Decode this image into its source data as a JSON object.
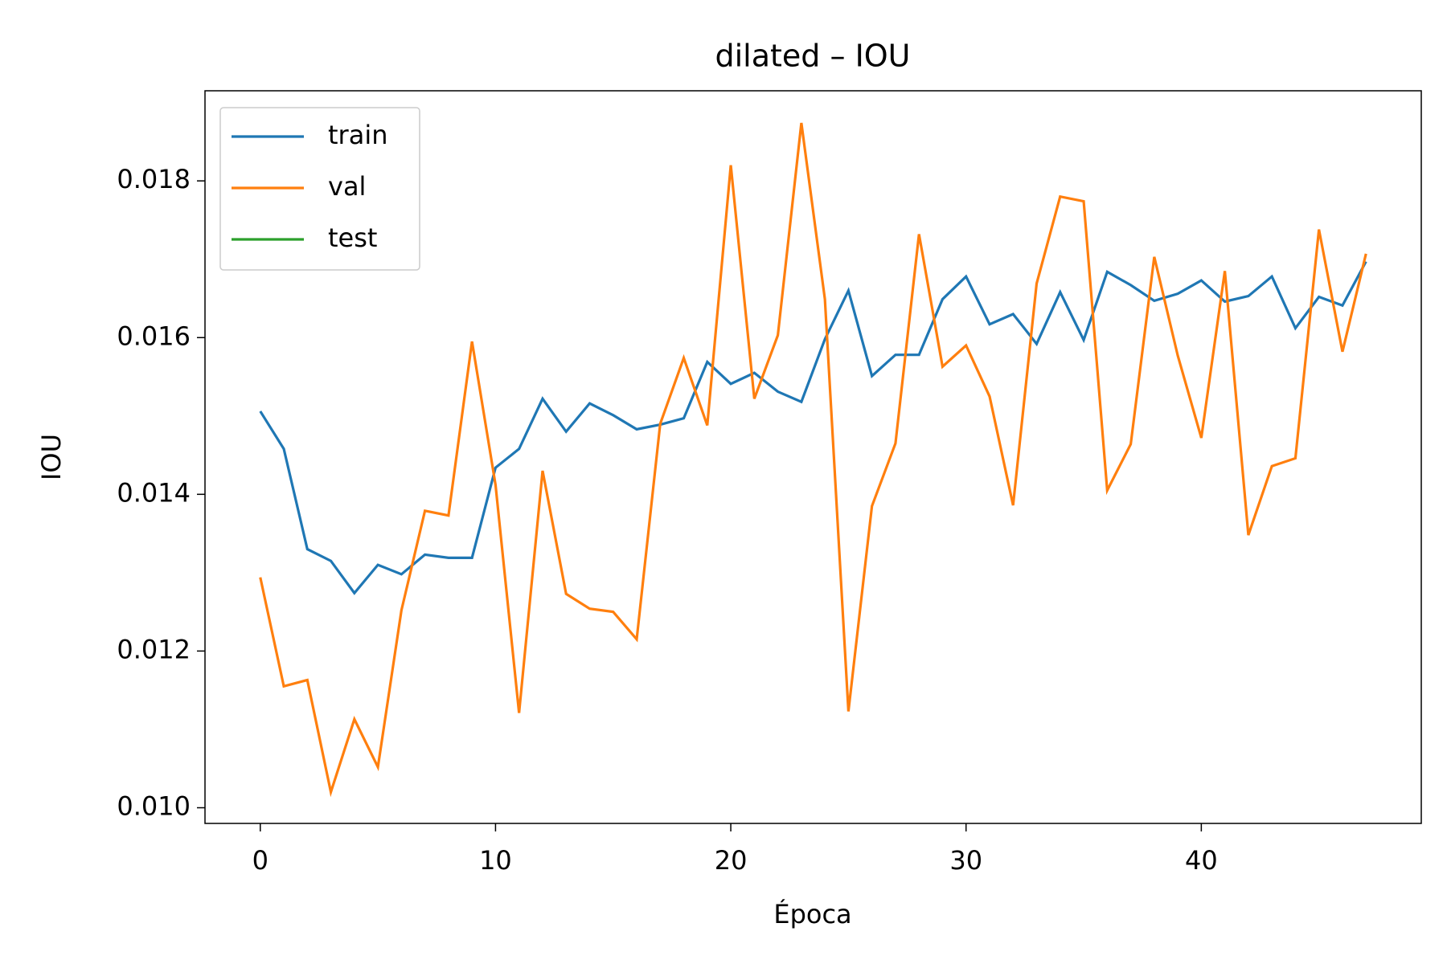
{
  "chart_data": {
    "type": "line",
    "title": "dilated – IOU",
    "xlabel": "Época",
    "ylabel": "IOU",
    "x": [
      0,
      1,
      2,
      3,
      4,
      5,
      6,
      7,
      8,
      9,
      10,
      11,
      12,
      13,
      14,
      15,
      16,
      17,
      18,
      19,
      20,
      21,
      22,
      23,
      24,
      25,
      26,
      27,
      28,
      29,
      30,
      31,
      32,
      33,
      34,
      35,
      36,
      37,
      38,
      39,
      40,
      41,
      42,
      43,
      44,
      45,
      46,
      47
    ],
    "series": [
      {
        "name": "train",
        "color": "#1f77b4",
        "values": [
          0.01506,
          0.01458,
          0.0133,
          0.01315,
          0.01274,
          0.0131,
          0.01298,
          0.01323,
          0.01319,
          0.01319,
          0.01434,
          0.01458,
          0.01522,
          0.0148,
          0.01516,
          0.01501,
          0.01483,
          0.01489,
          0.01497,
          0.01569,
          0.01541,
          0.01555,
          0.01531,
          0.01518,
          0.01598,
          0.0166,
          0.01551,
          0.01578,
          0.01578,
          0.01649,
          0.01678,
          0.01617,
          0.0163,
          0.01592,
          0.01658,
          0.01597,
          0.01684,
          0.01667,
          0.01647,
          0.01656,
          0.01673,
          0.01646,
          0.01653,
          0.01678,
          0.01612,
          0.01652,
          0.01641,
          0.01697
        ]
      },
      {
        "name": "val",
        "color": "#ff7f0e",
        "values": [
          0.01294,
          0.01155,
          0.01163,
          0.0102,
          0.01113,
          0.01052,
          0.01252,
          0.01379,
          0.01373,
          0.01595,
          0.01412,
          0.01121,
          0.0143,
          0.01273,
          0.01254,
          0.0125,
          0.01215,
          0.0149,
          0.01574,
          0.01488,
          0.0182,
          0.01522,
          0.01603,
          0.01874,
          0.01649,
          0.01123,
          0.01385,
          0.01465,
          0.01732,
          0.01563,
          0.0159,
          0.01525,
          0.01386,
          0.01669,
          0.0178,
          0.01774,
          0.01405,
          0.01464,
          0.01703,
          0.01577,
          0.01472,
          0.01685,
          0.01348,
          0.01436,
          0.01446,
          0.01738,
          0.01582,
          0.01707
        ]
      },
      {
        "name": "test",
        "color": "#2ca02c",
        "values": [
          null,
          null,
          null,
          null,
          null,
          null,
          null,
          null,
          null,
          null,
          null,
          null,
          null,
          null,
          null,
          null,
          null,
          null,
          null,
          null,
          null,
          null,
          null,
          null,
          null,
          null,
          null,
          null,
          null,
          null,
          null,
          null,
          null,
          null,
          null,
          null,
          null,
          null,
          null,
          null,
          null,
          null,
          null,
          null,
          null,
          null,
          null,
          null
        ]
      }
    ],
    "xlim": [
      -2.35,
      49.35
    ],
    "xticks": [
      0,
      10,
      20,
      30,
      40
    ],
    "ylim": [
      0.0098,
      0.01915
    ],
    "yticks": [
      {
        "value": 0.01,
        "label": "0.010"
      },
      {
        "value": 0.012,
        "label": "0.012"
      },
      {
        "value": 0.014,
        "label": "0.014"
      },
      {
        "value": 0.016,
        "label": "0.016"
      },
      {
        "value": 0.018,
        "label": "0.018"
      }
    ],
    "legend": "upper left"
  }
}
